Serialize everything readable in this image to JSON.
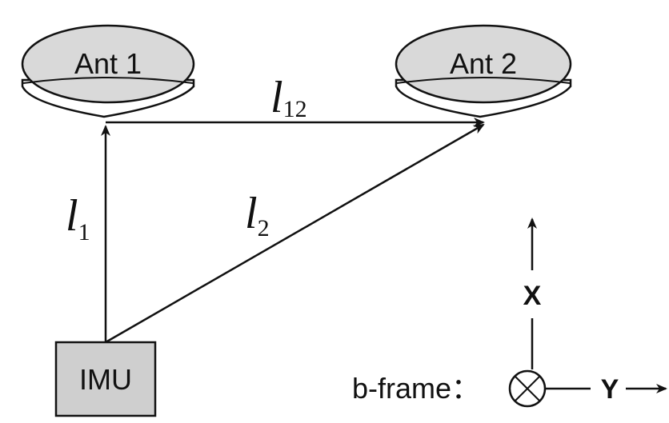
{
  "nodes": {
    "ant1": {
      "label": "Ant 1"
    },
    "ant2": {
      "label": "Ant 2"
    },
    "imu": {
      "label": "IMU"
    }
  },
  "vectors": {
    "l12": {
      "symbol": "l",
      "subscript": "12"
    },
    "l1": {
      "symbol": "l",
      "subscript": "1"
    },
    "l2": {
      "symbol": "l",
      "subscript": "2"
    }
  },
  "frame": {
    "label": "b-frame：",
    "x_axis": "X",
    "y_axis": "Y"
  },
  "colors": {
    "antenna_fill": "#d9d9d9",
    "imu_fill": "#cfcfcf",
    "stroke": "#111111"
  }
}
